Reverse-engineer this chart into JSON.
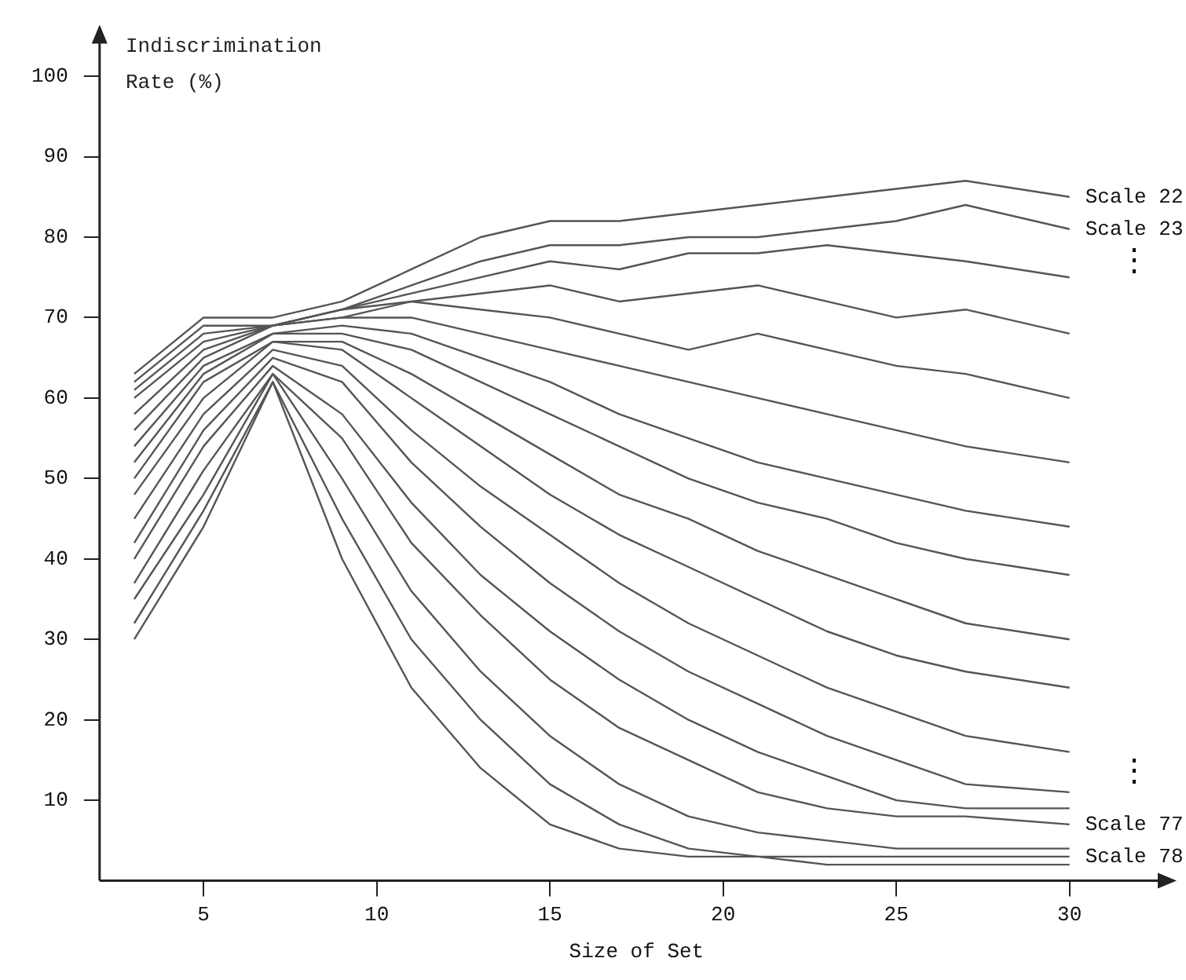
{
  "chart_data": {
    "type": "line",
    "xlabel": "Size of Set",
    "ylabel": "Indiscrimination Rate (%)",
    "x": [
      3,
      5,
      7,
      9,
      11,
      13,
      15,
      17,
      19,
      21,
      23,
      25,
      27,
      30
    ],
    "xlim": [
      2,
      33
    ],
    "xticks": [
      5,
      10,
      15,
      20,
      25,
      30
    ],
    "ylim": [
      0,
      106
    ],
    "yticks": [
      10,
      20,
      30,
      40,
      50,
      60,
      70,
      80,
      90,
      100
    ],
    "grid": false,
    "legend": false,
    "marker": "none",
    "line_style": "solid",
    "annotations": [
      "⋮",
      "⋮"
    ],
    "series": [
      {
        "name": "Scale 22",
        "color": "#555555",
        "values": [
          63,
          70,
          70,
          72,
          76,
          80,
          82,
          82,
          83,
          84,
          85,
          86,
          87,
          85
        ]
      },
      {
        "name": "Scale 23",
        "color": "#555555",
        "values": [
          62,
          69,
          69,
          71,
          74,
          77,
          79,
          79,
          80,
          80,
          81,
          82,
          84,
          81
        ]
      },
      {
        "color": "#555555",
        "values": [
          61,
          68,
          69,
          71,
          73,
          75,
          77,
          76,
          78,
          78,
          79,
          78,
          77,
          75
        ]
      },
      {
        "color": "#555555",
        "values": [
          60,
          67,
          69,
          71,
          72,
          73,
          74,
          72,
          73,
          74,
          72,
          70,
          71,
          68
        ]
      },
      {
        "color": "#555555",
        "values": [
          58,
          66,
          69,
          70,
          72,
          71,
          70,
          68,
          66,
          68,
          66,
          64,
          63,
          60
        ]
      },
      {
        "color": "#555555",
        "values": [
          56,
          65,
          69,
          70,
          70,
          68,
          66,
          64,
          62,
          60,
          58,
          56,
          54,
          52
        ]
      },
      {
        "color": "#555555",
        "values": [
          54,
          64,
          68,
          69,
          68,
          65,
          62,
          58,
          55,
          52,
          50,
          48,
          46,
          44
        ]
      },
      {
        "color": "#555555",
        "values": [
          52,
          63,
          68,
          68,
          66,
          62,
          58,
          54,
          50,
          47,
          45,
          42,
          40,
          38
        ]
      },
      {
        "color": "#555555",
        "values": [
          50,
          62,
          67,
          67,
          63,
          58,
          53,
          48,
          45,
          41,
          38,
          35,
          32,
          30
        ]
      },
      {
        "color": "#555555",
        "values": [
          48,
          60,
          67,
          66,
          60,
          54,
          48,
          43,
          39,
          35,
          31,
          28,
          26,
          24
        ]
      },
      {
        "color": "#555555",
        "values": [
          45,
          58,
          66,
          64,
          56,
          49,
          43,
          37,
          32,
          28,
          24,
          21,
          18,
          16
        ]
      },
      {
        "color": "#555555",
        "values": [
          42,
          56,
          65,
          62,
          52,
          44,
          37,
          31,
          26,
          22,
          18,
          15,
          12,
          11
        ]
      },
      {
        "color": "#555555",
        "values": [
          40,
          54,
          64,
          58,
          47,
          38,
          31,
          25,
          20,
          16,
          13,
          10,
          9,
          9
        ]
      },
      {
        "name": "Scale 77",
        "color": "#555555",
        "values": [
          37,
          51,
          63,
          55,
          42,
          33,
          25,
          19,
          15,
          11,
          9,
          8,
          8,
          7
        ]
      },
      {
        "color": "#555555",
        "values": [
          35,
          48,
          63,
          50,
          36,
          26,
          18,
          12,
          8,
          6,
          5,
          4,
          4,
          4
        ]
      },
      {
        "color": "#555555",
        "values": [
          32,
          46,
          62,
          45,
          30,
          20,
          12,
          7,
          4,
          3,
          2,
          2,
          2,
          2
        ]
      },
      {
        "name": "Scale 78",
        "color": "#555555",
        "values": [
          30,
          44,
          62,
          40,
          24,
          14,
          7,
          4,
          3,
          3,
          3,
          3,
          3,
          3
        ]
      }
    ]
  }
}
